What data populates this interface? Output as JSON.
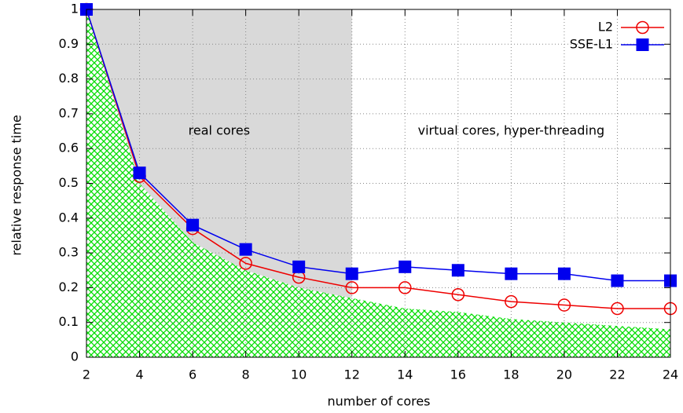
{
  "chart_data": {
    "type": "line",
    "xlabel": "number of cores",
    "ylabel": "relative response time",
    "x": [
      2,
      4,
      6,
      8,
      10,
      12,
      14,
      16,
      18,
      20,
      22,
      24
    ],
    "series": [
      {
        "name": "L2",
        "color": "#ee0000",
        "marker": "circle",
        "values": [
          1,
          0.52,
          0.37,
          0.27,
          0.23,
          0.2,
          0.2,
          0.18,
          0.16,
          0.15,
          0.14,
          0.14
        ]
      },
      {
        "name": "SSE-L1",
        "color": "#0000ee",
        "marker": "square",
        "values": [
          1,
          0.53,
          0.38,
          0.31,
          0.26,
          0.24,
          0.26,
          0.25,
          0.24,
          0.24,
          0.22,
          0.22
        ]
      }
    ],
    "area": {
      "color": "#00dd00",
      "values": [
        1,
        0.5,
        0.33,
        0.25,
        0.2,
        0.17,
        0.14,
        0.13,
        0.11,
        0.1,
        0.09,
        0.08
      ]
    },
    "shade": {
      "color": "#d9d9d9",
      "xlim": [
        2,
        12
      ]
    },
    "annotations": [
      {
        "text": "real cores",
        "x": 7,
        "y": 0.65
      },
      {
        "text": "virtual cores, hyper-threading",
        "x": 18,
        "y": 0.65
      }
    ],
    "xlim": [
      2,
      24
    ],
    "xticks": [
      2,
      4,
      6,
      8,
      10,
      12,
      14,
      16,
      18,
      20,
      22,
      24
    ],
    "ylim": [
      0,
      1
    ],
    "yticks": [
      0,
      0.1,
      0.2,
      0.3,
      0.4,
      0.5,
      0.6,
      0.7,
      0.8,
      0.9,
      1
    ],
    "grid": true,
    "legend": "upper right"
  }
}
